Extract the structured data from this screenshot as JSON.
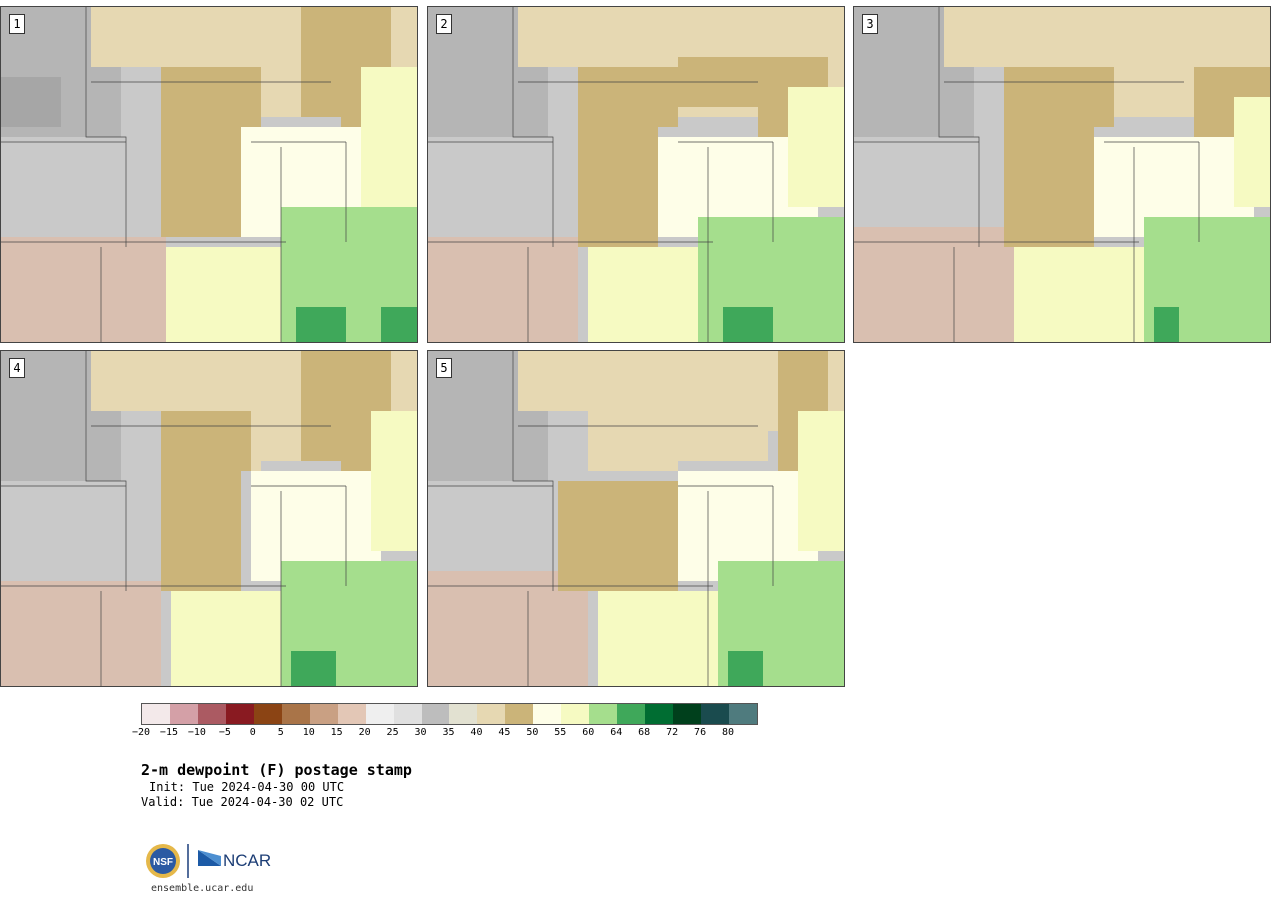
{
  "panels": [
    {
      "label": "1"
    },
    {
      "label": "2"
    },
    {
      "label": "3"
    },
    {
      "label": "4"
    },
    {
      "label": "5"
    }
  ],
  "colorbar": {
    "tick_labels": [
      "−20",
      "−15",
      "−10",
      "−5",
      "0",
      "5",
      "10",
      "15",
      "20",
      "25",
      "30",
      "35",
      "40",
      "45",
      "50",
      "55",
      "60",
      "64",
      "68",
      "72",
      "76",
      "80"
    ],
    "colors": [
      "#f3e9ea",
      "#d4a0a7",
      "#ab5a62",
      "#891a21",
      "#8b4414",
      "#a97448",
      "#c9a083",
      "#e3c7b6",
      "#efefef",
      "#e0e0e0",
      "#bdbdbd",
      "#e2e1d1",
      "#e6d8b2",
      "#cbb479",
      "#fefee8",
      "#f6fac2",
      "#a5de8d",
      "#3fa85a",
      "#006d32",
      "#00401c",
      "#1a4b4e",
      "#4f7b7e"
    ]
  },
  "title": "2-m dewpoint (F) postage stamp",
  "init": "Init: Tue 2024-04-30 00 UTC",
  "valid": "Valid: Tue 2024-04-30 02 UTC",
  "logos": {
    "nsf": "NSF",
    "ncar": "NCAR"
  },
  "url": "ensemble.ucar.edu"
}
